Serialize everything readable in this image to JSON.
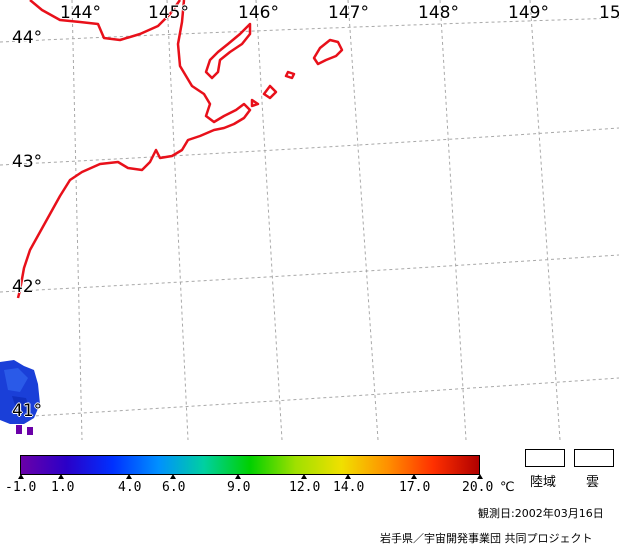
{
  "map": {
    "longitude_labels": [
      "144°",
      "145°",
      "146°",
      "147°",
      "148°",
      "149°",
      "15"
    ],
    "latitude_labels": [
      "44°",
      "43°",
      "42°",
      "41°"
    ],
    "colors": {
      "coastline": "#e8101a",
      "grid": "#a8a8a8",
      "sea_surface_data": "#1a3fd8"
    }
  },
  "color_scale": {
    "tick_labels": [
      "-1.0",
      "1.0",
      "4.0",
      "6.0",
      "9.0",
      "12.0",
      "14.0",
      "17.0",
      "20.0"
    ],
    "unit": "℃",
    "gradient_colors": [
      "#6a00a8",
      "#2a00c8",
      "#0030ff",
      "#0090ff",
      "#00d0a0",
      "#00d000",
      "#a0e000",
      "#f0e000",
      "#ff9000",
      "#ff3000",
      "#b00000"
    ]
  },
  "legend": {
    "land_label": "陸域",
    "cloud_label": "雲"
  },
  "observation_date": "観測日:2002年03月16日",
  "credit": "岩手県／宇宙開発事業団 共同プロジェクト"
}
